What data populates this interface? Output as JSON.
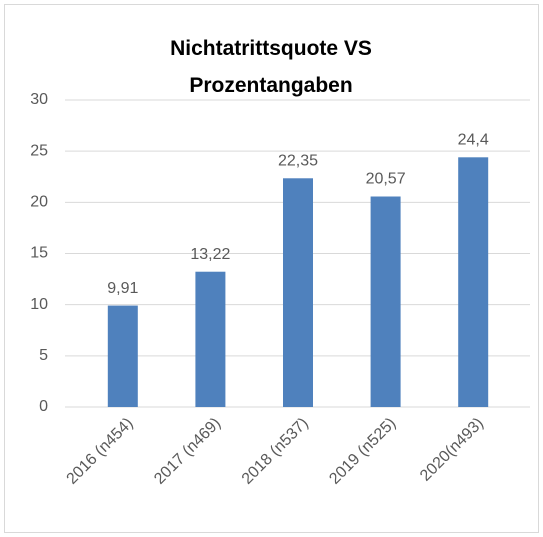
{
  "chart_data": {
    "type": "bar",
    "title": "Nichtatrittsquote VS Prozentangaben",
    "categories": [
      "2016 (n454)",
      "2017 (n469)",
      "2018 (n537)",
      "2019 (n525)",
      "2020(n493)"
    ],
    "values": [
      9.91,
      13.22,
      22.35,
      20.57,
      24.4
    ],
    "value_labels": [
      "9,91",
      "13,22",
      "22,35",
      "20,57",
      "24,4"
    ],
    "color": "#4f81bd",
    "ylim": [
      0,
      30
    ],
    "yticks": [
      0,
      5,
      10,
      15,
      20,
      25,
      30
    ],
    "grid": true
  }
}
